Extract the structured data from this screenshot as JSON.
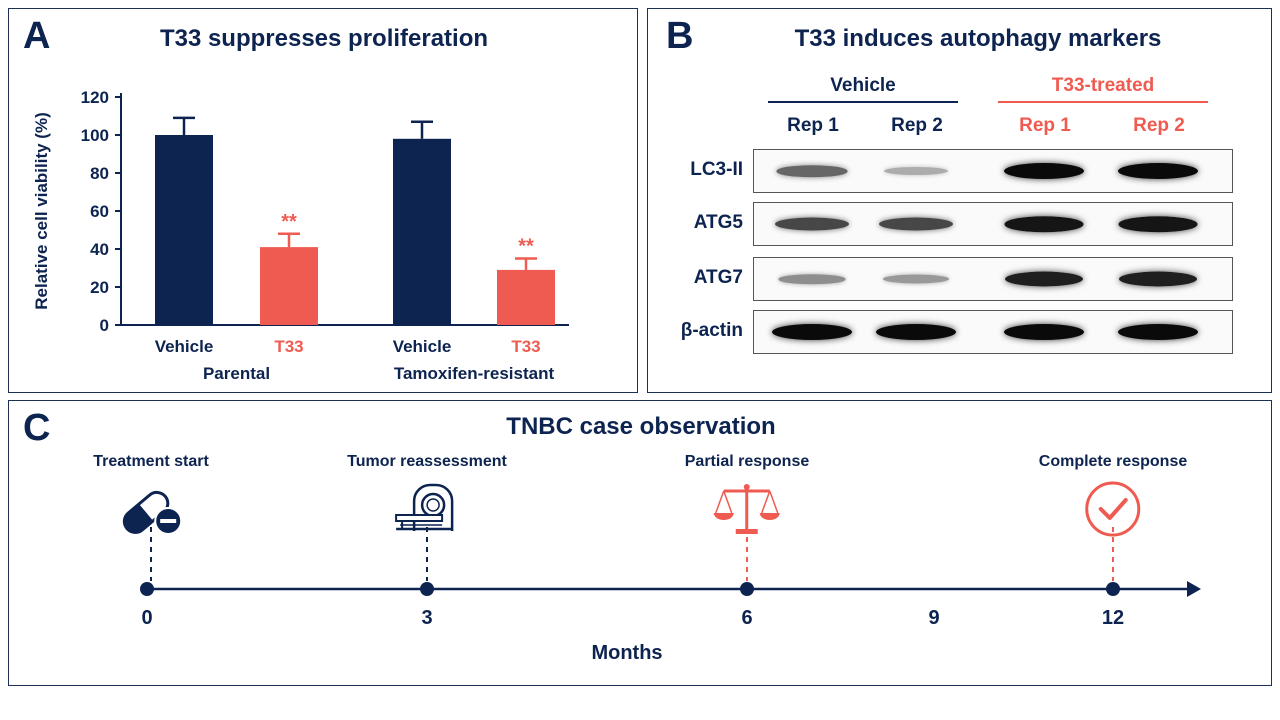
{
  "panel_a": {
    "letter": "A",
    "title": "T33 suppresses proliferation"
  },
  "panel_b": {
    "letter": "B",
    "title": "T33 induces autophagy markers",
    "groups": [
      "Vehicle",
      "T33-treated"
    ],
    "columns": [
      "Rep 1",
      "Rep 2",
      "Rep 1",
      "Rep 2"
    ],
    "rows": [
      {
        "label": "LC3-II",
        "intensity": [
          0.55,
          0.2,
          1.0,
          1.0
        ]
      },
      {
        "label": "ATG5",
        "intensity": [
          0.7,
          0.7,
          0.95,
          0.95
        ]
      },
      {
        "label": "ATG7",
        "intensity": [
          0.35,
          0.3,
          0.9,
          0.9
        ]
      },
      {
        "label": "β-actin",
        "intensity": [
          1.0,
          1.0,
          1.0,
          1.0
        ]
      }
    ],
    "colors": {
      "vehicle": "#0d2350",
      "treated": "#ef5b50"
    }
  },
  "panel_c": {
    "letter": "C",
    "title": "TNBC case observation",
    "axis_label": "Months",
    "ticks": [
      "0",
      "3",
      "6",
      "9",
      "12"
    ],
    "events": [
      {
        "month": 0,
        "label": "Treatment start",
        "icon": "pill-icon"
      },
      {
        "month": 3,
        "label": "Tumor reassessment",
        "icon": "scanner-icon"
      },
      {
        "month": 6,
        "label": "Partial response",
        "icon": "scale-icon"
      },
      {
        "month": 12,
        "label": "Complete response",
        "icon": "check-circle-icon"
      }
    ]
  },
  "chart_data": {
    "type": "bar",
    "title": "T33 suppresses proliferation",
    "xlabel": "",
    "ylabel": "Relative cell viability (%)",
    "ylim": [
      0,
      120
    ],
    "yticks": [
      0,
      20,
      40,
      60,
      80,
      100,
      120
    ],
    "groups": [
      "Parental",
      "Tamoxifen-resistant"
    ],
    "categories": [
      "Vehicle",
      "T33",
      "Vehicle",
      "T33"
    ],
    "values": [
      100,
      41,
      98,
      29
    ],
    "errors": [
      9,
      7,
      9,
      6
    ],
    "significance": [
      "",
      "**",
      "",
      "**"
    ],
    "colors": [
      "#0d2350",
      "#ef5b50",
      "#0d2350",
      "#ef5b50"
    ],
    "grid": false
  }
}
